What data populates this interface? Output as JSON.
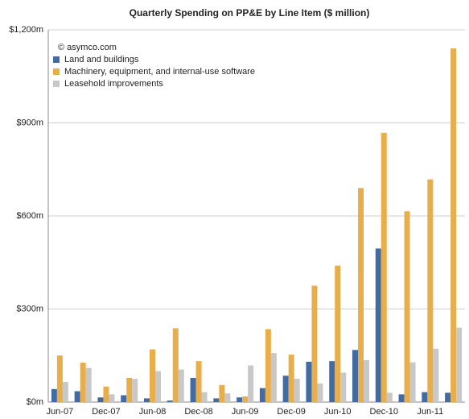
{
  "chart_data": {
    "type": "bar",
    "title": "Quarterly Spending on PP&E by Line Item ($ million)",
    "annotation": "© asymco.com",
    "categories": [
      "Jun-07",
      null,
      "Dec-07",
      null,
      "Jun-08",
      null,
      "Dec-08",
      null,
      "Jun-09",
      null,
      "Dec-09",
      null,
      "Jun-10",
      null,
      "Dec-10",
      null,
      "Jun-11",
      null
    ],
    "series": [
      {
        "name": "Land and buildings",
        "color": "#436ba3",
        "values": [
          42,
          35,
          15,
          22,
          12,
          5,
          78,
          12,
          15,
          45,
          85,
          130,
          132,
          168,
          495,
          25,
          32,
          30
        ]
      },
      {
        "name": "Machinery, equipment, and internal-use software",
        "color": "#e8ae4c",
        "values": [
          150,
          127,
          50,
          78,
          170,
          238,
          132,
          55,
          18,
          235,
          153,
          375,
          440,
          690,
          868,
          615,
          718,
          1140
        ]
      },
      {
        "name": "Leasehold improvements",
        "color": "#c8c8c8",
        "values": [
          65,
          110,
          25,
          75,
          100,
          105,
          32,
          28,
          118,
          158,
          75,
          60,
          95,
          135,
          30,
          128,
          172,
          240
        ]
      }
    ],
    "ylim": [
      0,
      1200
    ],
    "yticks": [
      {
        "value": 0,
        "label": "$0m"
      },
      {
        "value": 300,
        "label": "$300m"
      },
      {
        "value": 600,
        "label": "$600m"
      },
      {
        "value": 900,
        "label": "$900m"
      },
      {
        "value": 1200,
        "label": "$1,200m"
      }
    ],
    "grid": true,
    "legend": "top-left"
  }
}
